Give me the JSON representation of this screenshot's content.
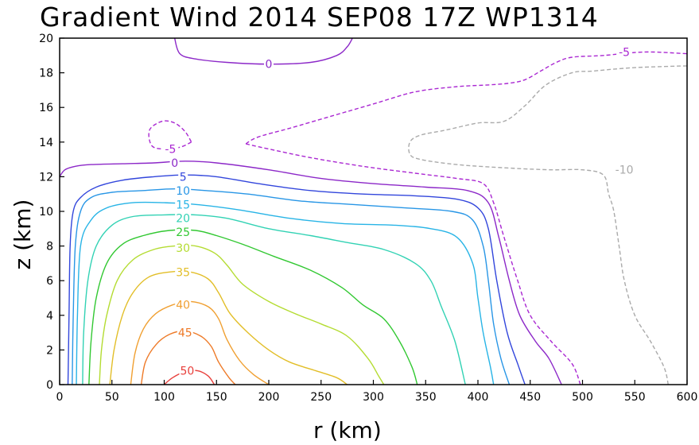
{
  "chart_data": {
    "type": "contour",
    "title": "Gradient Wind 2014 SEP08 17Z   WP1314",
    "xlabel": "r (km)",
    "ylabel": "z (km)",
    "xlim": [
      0,
      600
    ],
    "ylim": [
      0,
      20
    ],
    "xticks": [
      "0",
      "50",
      "100",
      "150",
      "200",
      "250",
      "300",
      "350",
      "400",
      "450",
      "500",
      "550",
      "600"
    ],
    "yticks": [
      "0",
      "2",
      "4",
      "6",
      "8",
      "10",
      "12",
      "14",
      "16",
      "18",
      "20"
    ],
    "grid": false,
    "contours": [
      {
        "level": 50,
        "label": "50",
        "color": "#e8403c",
        "dashed": false,
        "label_at": [
          122,
          0.8
        ],
        "points": [
          [
            100,
            0
          ],
          [
            108,
            0.4
          ],
          [
            120,
            0.75
          ],
          [
            132,
            0.8
          ],
          [
            142,
            0.5
          ],
          [
            148,
            0
          ]
        ]
      },
      {
        "level": 45,
        "label": "45",
        "color": "#ee7a28",
        "dashed": false,
        "label_at": [
          120,
          3.0
        ],
        "points": [
          [
            78,
            0
          ],
          [
            82,
            1.3
          ],
          [
            92,
            2.3
          ],
          [
            105,
            2.9
          ],
          [
            120,
            3.1
          ],
          [
            135,
            2.8
          ],
          [
            145,
            2.2
          ],
          [
            152,
            1.3
          ],
          [
            162,
            0.4
          ],
          [
            168,
            0
          ]
        ]
      },
      {
        "level": 40,
        "label": "40",
        "color": "#f0a032",
        "dashed": false,
        "label_at": [
          118,
          4.6
        ],
        "points": [
          [
            68,
            0
          ],
          [
            72,
            1.8
          ],
          [
            80,
            3.2
          ],
          [
            92,
            4.1
          ],
          [
            108,
            4.6
          ],
          [
            125,
            4.8
          ],
          [
            142,
            4.5
          ],
          [
            152,
            3.8
          ],
          [
            160,
            2.6
          ],
          [
            172,
            1.4
          ],
          [
            185,
            0.6
          ],
          [
            200,
            0
          ]
        ]
      },
      {
        "level": 35,
        "label": "35",
        "color": "#e2be28",
        "dashed": false,
        "label_at": [
          118,
          6.5
        ],
        "points": [
          [
            48,
            0
          ],
          [
            52,
            2
          ],
          [
            60,
            4
          ],
          [
            70,
            5.3
          ],
          [
            85,
            6.2
          ],
          [
            105,
            6.5
          ],
          [
            125,
            6.5
          ],
          [
            142,
            6.1
          ],
          [
            152,
            5.3
          ],
          [
            163,
            4.1
          ],
          [
            180,
            3
          ],
          [
            200,
            2
          ],
          [
            220,
            1.3
          ],
          [
            245,
            0.8
          ],
          [
            265,
            0.4
          ],
          [
            275,
            0
          ]
        ]
      },
      {
        "level": 30,
        "label": "30",
        "color": "#b4dc32",
        "dashed": false,
        "label_at": [
          118,
          7.9
        ],
        "points": [
          [
            38,
            0
          ],
          [
            40,
            2
          ],
          [
            45,
            4
          ],
          [
            55,
            6
          ],
          [
            70,
            7.2
          ],
          [
            90,
            7.8
          ],
          [
            110,
            8
          ],
          [
            130,
            8
          ],
          [
            148,
            7.6
          ],
          [
            160,
            6.9
          ],
          [
            175,
            5.8
          ],
          [
            200,
            4.8
          ],
          [
            225,
            4.1
          ],
          [
            250,
            3.5
          ],
          [
            275,
            2.8
          ],
          [
            295,
            1.5
          ],
          [
            305,
            0.5
          ],
          [
            310,
            0
          ]
        ]
      },
      {
        "level": 25,
        "label": "25",
        "color": "#32c832",
        "dashed": false,
        "label_at": [
          118,
          8.8
        ],
        "points": [
          [
            28,
            0
          ],
          [
            30,
            2.5
          ],
          [
            35,
            5
          ],
          [
            45,
            7
          ],
          [
            60,
            8.1
          ],
          [
            80,
            8.6
          ],
          [
            105,
            8.9
          ],
          [
            130,
            8.9
          ],
          [
            150,
            8.6
          ],
          [
            175,
            8.1
          ],
          [
            205,
            7.4
          ],
          [
            240,
            6.6
          ],
          [
            270,
            5.6
          ],
          [
            290,
            4.6
          ],
          [
            310,
            3.8
          ],
          [
            325,
            2.5
          ],
          [
            337,
            1
          ],
          [
            342,
            0
          ]
        ]
      },
      {
        "level": 20,
        "label": "20",
        "color": "#32d2b4",
        "dashed": false,
        "label_at": [
          118,
          9.6
        ],
        "points": [
          [
            22,
            0
          ],
          [
            23,
            3
          ],
          [
            27,
            6
          ],
          [
            35,
            8
          ],
          [
            50,
            9.2
          ],
          [
            70,
            9.7
          ],
          [
            100,
            9.8
          ],
          [
            130,
            9.8
          ],
          [
            160,
            9.6
          ],
          [
            200,
            9
          ],
          [
            240,
            8.6
          ],
          [
            275,
            8.2
          ],
          [
            310,
            7.8
          ],
          [
            340,
            7
          ],
          [
            355,
            6
          ],
          [
            365,
            4.5
          ],
          [
            378,
            2.5
          ],
          [
            388,
            0
          ]
        ]
      },
      {
        "level": 15,
        "label": "15",
        "color": "#28b4e6",
        "dashed": false,
        "label_at": [
          118,
          10.4
        ],
        "points": [
          [
            16,
            0
          ],
          [
            17,
            4
          ],
          [
            20,
            8
          ],
          [
            30,
            9.5
          ],
          [
            45,
            10.2
          ],
          [
            70,
            10.5
          ],
          [
            100,
            10.5
          ],
          [
            130,
            10.4
          ],
          [
            170,
            10.1
          ],
          [
            220,
            9.6
          ],
          [
            270,
            9.3
          ],
          [
            320,
            9.2
          ],
          [
            355,
            9
          ],
          [
            380,
            8.5
          ],
          [
            395,
            7
          ],
          [
            400,
            5
          ],
          [
            405,
            3
          ],
          [
            412,
            1
          ],
          [
            415,
            0
          ]
        ]
      },
      {
        "level": 10,
        "label": "10",
        "color": "#2896e6",
        "dashed": false,
        "label_at": [
          118,
          11.2
        ],
        "points": [
          [
            12,
            0
          ],
          [
            13,
            4
          ],
          [
            15,
            8
          ],
          [
            20,
            10
          ],
          [
            30,
            10.8
          ],
          [
            50,
            11.1
          ],
          [
            80,
            11.2
          ],
          [
            110,
            11.3
          ],
          [
            140,
            11.2
          ],
          [
            180,
            11
          ],
          [
            230,
            10.6
          ],
          [
            280,
            10.4
          ],
          [
            330,
            10.2
          ],
          [
            375,
            10
          ],
          [
            395,
            9.5
          ],
          [
            405,
            8
          ],
          [
            410,
            6
          ],
          [
            415,
            3.5
          ],
          [
            422,
            1.5
          ],
          [
            430,
            0
          ]
        ]
      },
      {
        "level": 5,
        "label": "5",
        "color": "#3246dc",
        "dashed": false,
        "label_at": [
          118,
          12.0
        ],
        "points": [
          [
            8,
            0
          ],
          [
            9,
            4
          ],
          [
            10,
            8
          ],
          [
            13,
            10
          ],
          [
            20,
            10.8
          ],
          [
            35,
            11.4
          ],
          [
            60,
            11.8
          ],
          [
            90,
            12
          ],
          [
            120,
            12.1
          ],
          [
            150,
            12
          ],
          [
            190,
            11.6
          ],
          [
            240,
            11.2
          ],
          [
            290,
            11
          ],
          [
            340,
            10.9
          ],
          [
            380,
            10.7
          ],
          [
            400,
            10.2
          ],
          [
            410,
            9
          ],
          [
            418,
            6
          ],
          [
            428,
            3
          ],
          [
            438,
            1.2
          ],
          [
            445,
            0
          ]
        ]
      },
      {
        "level": 0,
        "label": "0",
        "color": "#8c28c8",
        "dashed": false,
        "label_at": [
          110,
          12.8
        ],
        "points": [
          [
            0,
            12
          ],
          [
            5,
            12.4
          ],
          [
            15,
            12.6
          ],
          [
            30,
            12.7
          ],
          [
            60,
            12.75
          ],
          [
            90,
            12.8
          ],
          [
            120,
            12.9
          ],
          [
            150,
            12.8
          ],
          [
            200,
            12.4
          ],
          [
            250,
            11.9
          ],
          [
            300,
            11.6
          ],
          [
            350,
            11.4
          ],
          [
            390,
            11.2
          ],
          [
            410,
            10.5
          ],
          [
            420,
            8.5
          ],
          [
            430,
            6
          ],
          [
            440,
            4
          ],
          [
            455,
            2.5
          ],
          [
            468,
            1.5
          ],
          [
            480,
            0
          ]
        ]
      },
      {
        "level": 0,
        "label": "0",
        "color": "#8c28c8",
        "dashed": false,
        "label_at": [
          200,
          18.5
        ],
        "points": [
          [
            110,
            20
          ],
          [
            115,
            19.1
          ],
          [
            130,
            18.8
          ],
          [
            160,
            18.6
          ],
          [
            200,
            18.5
          ],
          [
            240,
            18.6
          ],
          [
            265,
            19
          ],
          [
            275,
            19.5
          ],
          [
            280,
            20
          ]
        ]
      },
      {
        "level": -5,
        "label": "-5",
        "color": "#aa28d2",
        "dashed": true,
        "label_at": [
          540,
          19.2
        ],
        "points": [
          [
            178,
            13.9
          ],
          [
            190,
            14.3
          ],
          [
            220,
            14.8
          ],
          [
            260,
            15.5
          ],
          [
            300,
            16.2
          ],
          [
            340,
            16.9
          ],
          [
            380,
            17.2
          ],
          [
            410,
            17.3
          ],
          [
            430,
            17.4
          ],
          [
            445,
            17.6
          ],
          [
            460,
            18.1
          ],
          [
            475,
            18.6
          ],
          [
            490,
            18.9
          ],
          [
            520,
            19
          ],
          [
            560,
            19.2
          ],
          [
            600,
            19.1
          ]
        ]
      },
      {
        "level": -5,
        "label": "",
        "color": "#aa28d2",
        "dashed": true,
        "label_at": null,
        "points": [
          [
            178,
            13.9
          ],
          [
            200,
            13.6
          ],
          [
            240,
            13.1
          ],
          [
            290,
            12.6
          ],
          [
            340,
            12.2
          ],
          [
            380,
            11.9
          ],
          [
            405,
            11.6
          ],
          [
            415,
            10.5
          ],
          [
            425,
            8.5
          ],
          [
            438,
            6
          ],
          [
            450,
            4
          ],
          [
            470,
            2.5
          ],
          [
            490,
            1.2
          ],
          [
            498,
            0
          ]
        ]
      },
      {
        "level": -5,
        "label": "-5",
        "color": "#aa28d2",
        "dashed": true,
        "label_at": [
          106,
          13.6
        ],
        "points": [
          [
            126,
            14
          ],
          [
            115,
            13.7
          ],
          [
            100,
            13.6
          ],
          [
            88,
            13.8
          ],
          [
            86,
            14.7
          ],
          [
            98,
            15.2
          ],
          [
            110,
            15.1
          ],
          [
            120,
            14.6
          ],
          [
            126,
            14
          ]
        ]
      },
      {
        "level": -10,
        "label": "-10",
        "color": "#aaaaaa",
        "dashed": true,
        "label_at": [
          540,
          12.4
        ],
        "points": [
          [
            600,
            18.4
          ],
          [
            550,
            18.3
          ],
          [
            510,
            18.1
          ],
          [
            490,
            18
          ],
          [
            465,
            17.3
          ],
          [
            445,
            16.1
          ],
          [
            425,
            15.2
          ],
          [
            400,
            15.1
          ],
          [
            370,
            14.7
          ],
          [
            345,
            14.4
          ],
          [
            335,
            14
          ],
          [
            335,
            13.3
          ],
          [
            345,
            13
          ],
          [
            380,
            12.7
          ],
          [
            430,
            12.5
          ],
          [
            470,
            12.4
          ],
          [
            500,
            12.4
          ],
          [
            520,
            12.1
          ],
          [
            525,
            11
          ],
          [
            530,
            10
          ],
          [
            535,
            8
          ],
          [
            540,
            6
          ],
          [
            550,
            4
          ],
          [
            565,
            2.5
          ],
          [
            578,
            1
          ],
          [
            582,
            0
          ]
        ]
      }
    ]
  }
}
